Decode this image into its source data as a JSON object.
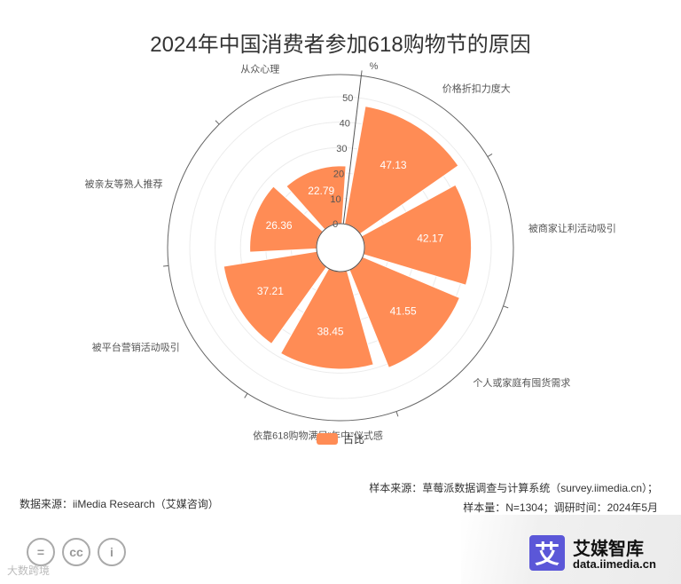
{
  "title": "2024年中国消费者参加618购物节的原因",
  "chart_data": {
    "type": "bar",
    "polar": true,
    "radial_unit": "%",
    "radial_range": [
      0,
      50
    ],
    "radial_ticks": [
      "0",
      "10",
      "20",
      "30",
      "40",
      "50"
    ],
    "categories": [
      "价格折扣力度大",
      "被商家让利活动吸引",
      "个人或家庭有囤货需求",
      "依靠618购物满足“年中”仪式感",
      "被平台营销活动吸引",
      "被亲友等熟人推荐",
      "从众心理"
    ],
    "series": [
      {
        "name": "占比",
        "values": [
          47.13,
          42.17,
          41.55,
          38.45,
          37.21,
          26.36,
          22.79
        ],
        "labels": [
          "47.13",
          "42.17",
          "41.55",
          "38.45",
          "37.21",
          "26.36",
          "22.79"
        ]
      }
    ],
    "color": "#FF8C55",
    "grid": true,
    "legend": "bottom-center"
  },
  "legend": {
    "label": "占比"
  },
  "source": {
    "sample_source": "样本来源：草莓派数据调查与计算系统（survey.iimedia.cn）；",
    "sample_info": "样本量：N=1304；调研时间：2024年5月",
    "data_source": "数据来源：iiMedia Research（艾媒咨询）"
  },
  "watermark": "大数跨境",
  "cc_icons": [
    "=",
    "cc",
    "i"
  ],
  "brand": {
    "logo_char": "艾",
    "name": "艾媒智库",
    "url": "data.iimedia.cn"
  }
}
